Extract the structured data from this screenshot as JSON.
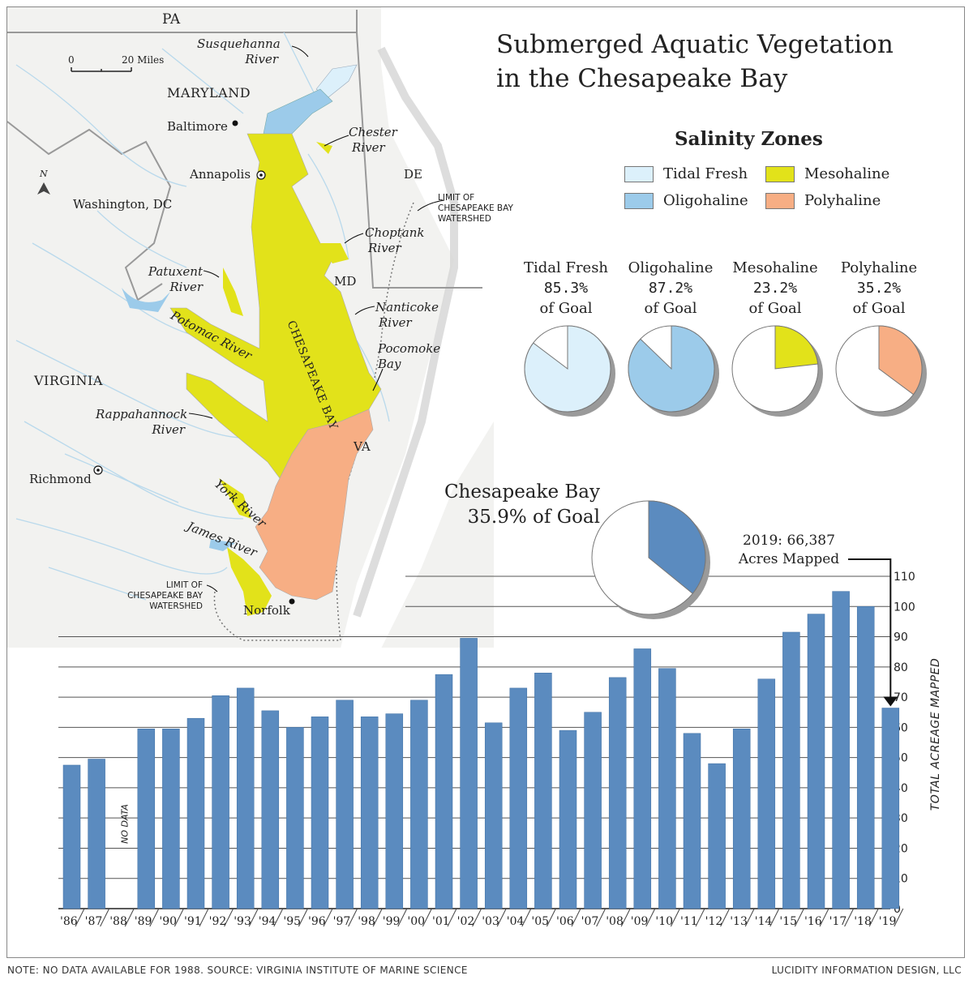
{
  "title": [
    "Submerged Aquatic Vegetation",
    "in the Chesapeake Bay"
  ],
  "legend": {
    "title": "Salinity Zones",
    "items": [
      {
        "label": "Tidal Fresh",
        "color": "#dcf0fb"
      },
      {
        "label": "Mesohaline",
        "color": "#e2e21a"
      },
      {
        "label": "Oligohaline",
        "color": "#9ccbea"
      },
      {
        "label": "Polyhaline",
        "color": "#f7ae84"
      }
    ]
  },
  "zones": [
    {
      "name": "Tidal Fresh",
      "pct_text": "85.3%",
      "suffix": "of Goal",
      "value": 85.3,
      "color": "#dcf0fb"
    },
    {
      "name": "Oligohaline",
      "pct_text": "87.2%",
      "suffix": "of Goal",
      "value": 87.2,
      "color": "#9ccbea"
    },
    {
      "name": "Mesohaline",
      "pct_text": "23.2%",
      "suffix": "of Goal",
      "value": 23.2,
      "color": "#e2e21a"
    },
    {
      "name": "Polyhaline",
      "pct_text": "35.2%",
      "suffix": "of Goal",
      "value": 35.2,
      "color": "#f7ae84"
    }
  ],
  "bay_total": {
    "name": "Chesapeake Bay",
    "pct_text": "35.9% of Goal",
    "value": 35.9,
    "color": "#5b8bbf"
  },
  "map": {
    "labels": {
      "pa": "PA",
      "maryland": "MARYLAND",
      "baltimore": "Baltimore",
      "annapolis": "Annapolis",
      "washington": "Washington, DC",
      "virginia": "VIRGINIA",
      "richmond": "Richmond",
      "norfolk": "Norfolk",
      "de": "DE",
      "md": "MD",
      "va": "VA",
      "bay": "CHESAPEAKE BAY",
      "scale_0": "0",
      "scale_20": "20 Miles",
      "north": "N",
      "susquehanna": [
        "Susquehanna",
        "River"
      ],
      "chester": [
        "Chester",
        "River"
      ],
      "choptank": [
        "Choptank",
        "River"
      ],
      "nanticoke": [
        "Nanticoke",
        "River"
      ],
      "pocomoke": [
        "Pocomoke",
        "Bay"
      ],
      "patuxent": [
        "Patuxent",
        "River"
      ],
      "potomac": "Potomac River",
      "rappahannock": [
        "Rappahannock",
        "River"
      ],
      "york": "York River",
      "james": "James River",
      "limit_e": [
        "LIMIT OF",
        "CHESAPEAKE BAY",
        "WATERSHED"
      ],
      "limit_w": [
        "LIMIT OF",
        "CHESAPEAKE BAY",
        "WATERSHED"
      ]
    }
  },
  "chart_data": {
    "type": "bar",
    "categories": [
      "'86",
      "'87",
      "'88",
      "'89",
      "'90",
      "'91",
      "'92",
      "'93",
      "'94",
      "'95",
      "'96",
      "'97",
      "'98",
      "'99",
      "'00",
      "'01",
      "'02",
      "'03",
      "'04",
      "'05",
      "'06",
      "'07",
      "'08",
      "'09",
      "'10",
      "'11",
      "'12",
      "'13",
      "'14",
      "'15",
      "'16",
      "'17",
      "'18",
      "'19"
    ],
    "values": [
      47.5,
      49.5,
      null,
      59.5,
      59.5,
      63,
      70.5,
      73,
      65.5,
      60,
      63.5,
      69,
      63.5,
      64.5,
      69,
      77.5,
      89.5,
      61.5,
      73,
      78,
      59,
      65,
      76.5,
      86,
      79.5,
      58,
      48,
      59.5,
      76,
      91.5,
      97.5,
      105,
      100,
      66.4
    ],
    "ylabel": "TOTAL ACREAGE MAPPED",
    "ylim": [
      0,
      110
    ],
    "yticks": [
      0,
      10,
      20,
      30,
      40,
      50,
      60,
      70,
      80,
      90,
      100,
      110
    ],
    "color": "#5b8bbf",
    "no_data_label": "NO DATA",
    "annotation": [
      "2019: 66,387",
      "Acres Mapped"
    ]
  },
  "footer": {
    "left": "NOTE: NO DATA AVAILABLE FOR 1988. SOURCE: VIRGINIA INSTITUTE OF MARINE SCIENCE",
    "right": "LUCIDITY INFORMATION DESIGN, LLC"
  }
}
